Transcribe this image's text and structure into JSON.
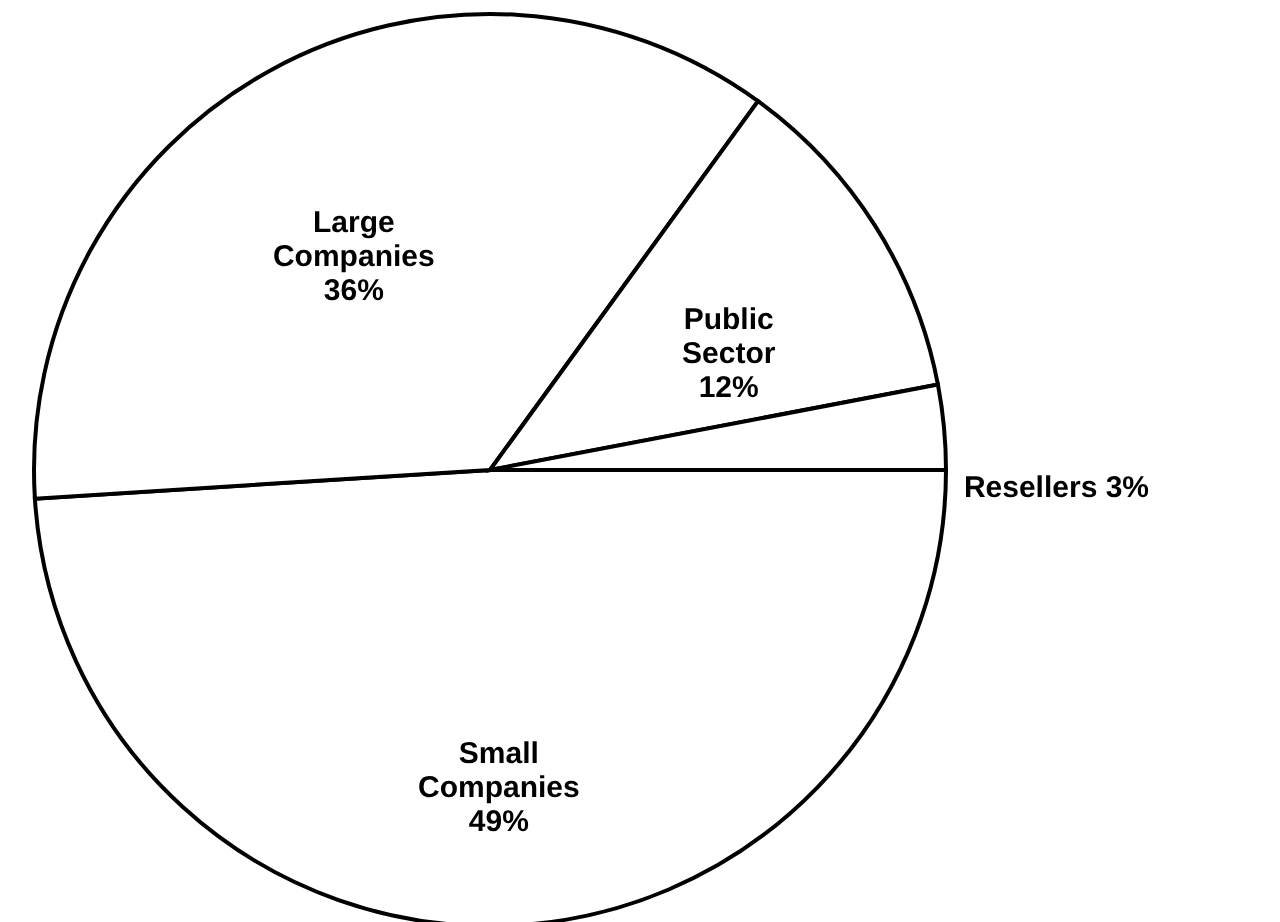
{
  "chart_data": {
    "type": "pie",
    "categories": [
      "Small Companies",
      "Large Companies",
      "Public Sector",
      "Resellers"
    ],
    "values": [
      49,
      36,
      12,
      3
    ],
    "colors": [
      "#ffffff",
      "#ffffff",
      "#ffffff",
      "#ffffff"
    ],
    "value_labels": [
      "49%",
      "36%",
      "12%",
      "3%"
    ]
  }
}
